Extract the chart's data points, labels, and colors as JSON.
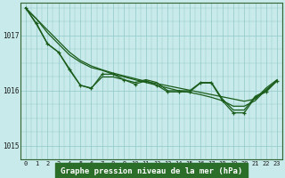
{
  "title": "Graphe pression niveau de la mer (hPa)",
  "background_color": "#c8eaea",
  "plot_bg_color": "#c8eaea",
  "grid_color": "#90c8c8",
  "line_color": "#1a5c1a",
  "label_bg_color": "#2a6e2a",
  "label_text_color": "#ffffff",
  "ylim": [
    1014.75,
    1017.6
  ],
  "yticks": [
    1015,
    1016,
    1017
  ],
  "xlim": [
    -0.5,
    23.5
  ],
  "xticks": [
    0,
    1,
    2,
    3,
    4,
    5,
    6,
    7,
    8,
    9,
    10,
    11,
    12,
    13,
    14,
    15,
    16,
    17,
    18,
    19,
    20,
    21,
    22,
    23
  ],
  "series_smooth": [
    1017.5,
    1017.3,
    1017.1,
    1016.9,
    1016.7,
    1016.55,
    1016.45,
    1016.38,
    1016.32,
    1016.27,
    1016.22,
    1016.17,
    1016.13,
    1016.09,
    1016.05,
    1016.01,
    1015.97,
    1015.93,
    1015.89,
    1015.85,
    1015.81,
    1015.85,
    1016.05,
    1016.2
  ],
  "series_mid": [
    1017.5,
    1017.3,
    1017.05,
    1016.85,
    1016.65,
    1016.52,
    1016.42,
    1016.37,
    1016.3,
    1016.25,
    1016.2,
    1016.15,
    1016.1,
    1016.05,
    1016.0,
    1015.97,
    1015.93,
    1015.88,
    1015.82,
    1015.72,
    1015.72,
    1015.82,
    1016.02,
    1016.18
  ],
  "series_zigzag": [
    1017.5,
    1017.2,
    1016.85,
    1016.7,
    1016.4,
    1016.1,
    1016.05,
    1016.25,
    1016.25,
    1016.2,
    1016.15,
    1016.2,
    1016.15,
    1016.0,
    1016.0,
    1016.0,
    1016.15,
    1016.15,
    1015.85,
    1015.65,
    1015.65,
    1015.9,
    1016.0,
    1016.18
  ],
  "series_markers": [
    1017.5,
    1017.22,
    1016.85,
    1016.7,
    1016.38,
    1016.1,
    1016.04,
    1016.3,
    1016.3,
    1016.2,
    1016.12,
    1016.18,
    1016.1,
    1015.98,
    1015.98,
    1015.98,
    1016.14,
    1016.14,
    1015.82,
    1015.6,
    1015.6,
    1015.88,
    1015.98,
    1016.18
  ]
}
